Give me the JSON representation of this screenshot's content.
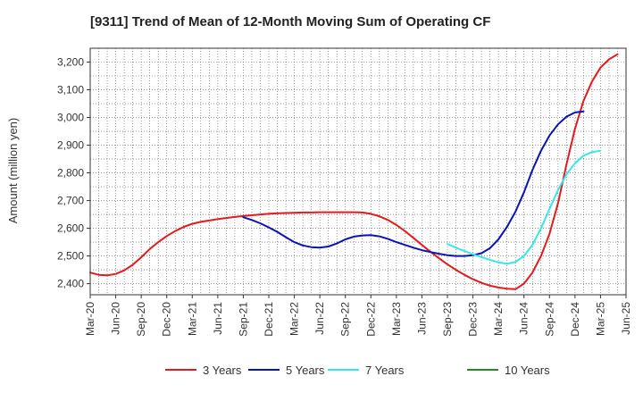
{
  "chart_data": {
    "type": "line",
    "title": "[9311]  Trend of Mean of 12-Month Moving Sum of Operating CF",
    "xlabel": "",
    "ylabel": "Amount (million yen)",
    "ylim": [
      2360,
      3250
    ],
    "yticks": [
      2400,
      2500,
      2600,
      2700,
      2800,
      2900,
      3000,
      3100,
      3200
    ],
    "ytick_labels": [
      "2,400",
      "2,500",
      "2,600",
      "2,700",
      "2,800",
      "2,900",
      "3,000",
      "3,100",
      "3,200"
    ],
    "xlim": [
      0,
      63
    ],
    "xticks": [
      0,
      3,
      6,
      9,
      12,
      15,
      18,
      21,
      24,
      27,
      30,
      33,
      36,
      39,
      42,
      45,
      48,
      51,
      54,
      57,
      60,
      63
    ],
    "xtick_labels": [
      "Mar-20",
      "Jun-20",
      "Sep-20",
      "Dec-20",
      "Mar-21",
      "Jun-21",
      "Sep-21",
      "Dec-21",
      "Mar-22",
      "Jun-22",
      "Sep-22",
      "Dec-22",
      "Mar-23",
      "Jun-23",
      "Sep-23",
      "Dec-23",
      "Mar-24",
      "Jun-24",
      "Sep-24",
      "Dec-24",
      "Mar-25",
      "Jun-25"
    ],
    "grid": true,
    "legend_position": "bottom",
    "series": [
      {
        "name": "3 Years",
        "color": "#e41a1c",
        "start": 0,
        "values": [
          2440,
          2432,
          2430,
          2435,
          2448,
          2468,
          2495,
          2525,
          2550,
          2572,
          2590,
          2605,
          2616,
          2623,
          2628,
          2633,
          2637,
          2641,
          2644,
          2647,
          2650,
          2652,
          2654,
          2655,
          2656,
          2657,
          2657,
          2658,
          2658,
          2658,
          2658,
          2658,
          2657,
          2652,
          2643,
          2630,
          2612,
          2590,
          2565,
          2540,
          2515,
          2492,
          2470,
          2450,
          2432,
          2416,
          2403,
          2393,
          2386,
          2382,
          2380,
          2400,
          2440,
          2500,
          2580,
          2690,
          2830,
          2960,
          3060,
          3130,
          3180,
          3210,
          3228
        ]
      },
      {
        "name": "5 Years",
        "color": "#0a14b4",
        "start": 18,
        "values": [
          2640,
          2630,
          2618,
          2603,
          2587,
          2568,
          2550,
          2538,
          2532,
          2530,
          2534,
          2545,
          2560,
          2570,
          2574,
          2575,
          2571,
          2562,
          2550,
          2540,
          2530,
          2521,
          2514,
          2508,
          2503,
          2500,
          2500,
          2503,
          2510,
          2528,
          2560,
          2605,
          2660,
          2730,
          2810,
          2880,
          2935,
          2975,
          3003,
          3018,
          3022
        ]
      },
      {
        "name": "7 Years",
        "color": "#33e8e8",
        "start": 42,
        "values": [
          2543,
          2530,
          2518,
          2506,
          2496,
          2486,
          2477,
          2472,
          2478,
          2500,
          2540,
          2600,
          2670,
          2738,
          2795,
          2835,
          2862,
          2875,
          2880
        ]
      },
      {
        "name": "10 Years",
        "color": "#228b22",
        "start": 0,
        "values": []
      }
    ]
  }
}
